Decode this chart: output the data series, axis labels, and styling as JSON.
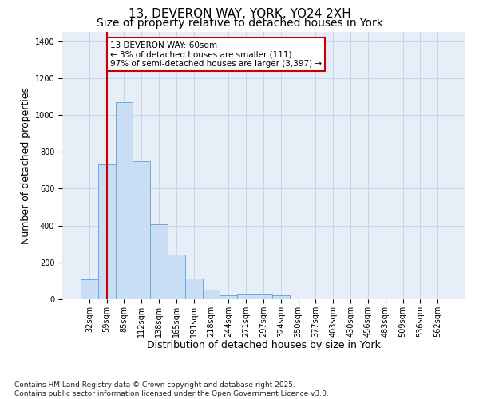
{
  "title_line1": "13, DEVERON WAY, YORK, YO24 2XH",
  "title_line2": "Size of property relative to detached houses in York",
  "xlabel": "Distribution of detached houses by size in York",
  "ylabel": "Number of detached properties",
  "categories": [
    "32sqm",
    "59sqm",
    "85sqm",
    "112sqm",
    "138sqm",
    "165sqm",
    "191sqm",
    "218sqm",
    "244sqm",
    "271sqm",
    "297sqm",
    "324sqm",
    "350sqm",
    "377sqm",
    "403sqm",
    "430sqm",
    "456sqm",
    "483sqm",
    "509sqm",
    "536sqm",
    "562sqm"
  ],
  "values": [
    110,
    730,
    1070,
    750,
    405,
    242,
    112,
    50,
    20,
    28,
    25,
    20,
    0,
    0,
    0,
    0,
    0,
    0,
    0,
    0,
    0
  ],
  "bar_color": "#c9ddf5",
  "bar_edge_color": "#6aaad4",
  "grid_color": "#c8d4e8",
  "background_color": "#e8eef8",
  "vline_x_index": 1,
  "vline_color": "#cc0000",
  "annotation_text": "13 DEVERON WAY: 60sqm\n← 3% of detached houses are smaller (111)\n97% of semi-detached houses are larger (3,397) →",
  "annotation_box_facecolor": "white",
  "annotation_box_edgecolor": "#cc0000",
  "ylim": [
    0,
    1450
  ],
  "yticks": [
    0,
    200,
    400,
    600,
    800,
    1000,
    1200,
    1400
  ],
  "footnote": "Contains HM Land Registry data © Crown copyright and database right 2025.\nContains public sector information licensed under the Open Government Licence v3.0.",
  "title_fontsize": 11,
  "subtitle_fontsize": 10,
  "axis_label_fontsize": 9,
  "tick_fontsize": 7,
  "annotation_fontsize": 7.5,
  "footnote_fontsize": 6.5
}
